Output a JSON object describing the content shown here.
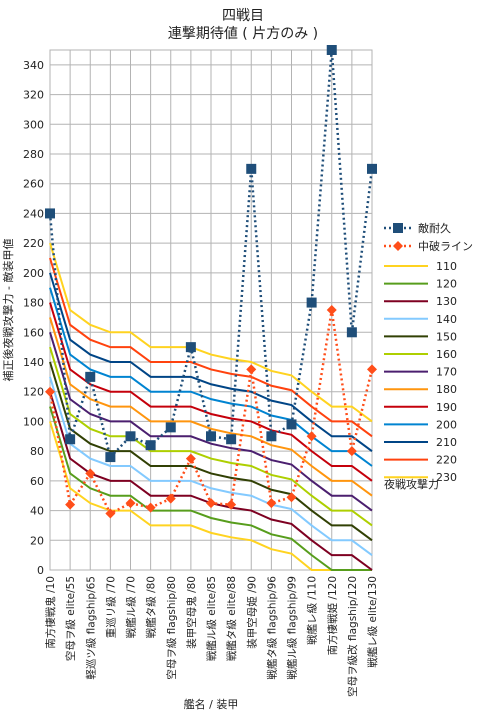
{
  "chart_data": {
    "type": "line",
    "title": "四戦目",
    "subtitle": "連撃期待値 ( 片方のみ )",
    "xlabel": "艦名 / 装甲",
    "ylabel": "補正後夜戦攻撃力 - 敵装甲値",
    "ylim": [
      0,
      350
    ],
    "yticks": [
      0,
      20,
      40,
      60,
      80,
      100,
      120,
      140,
      160,
      180,
      200,
      220,
      240,
      260,
      280,
      300,
      320,
      340
    ],
    "grid": true,
    "legend_position": "right",
    "legend_title": "夜戦攻撃力",
    "categories": [
      "南方棲戦鬼 /10",
      "空母ヲ級 elite/55",
      "軽巡ツ級 flagship/65",
      "重巡リ級 /70",
      "戦艦ル級 /70",
      "戦艦タ級 /80",
      "空母ヲ級 flagship/80",
      "装甲空母鬼 /80",
      "戦艦ル級 elite/85",
      "戦艦タ級 elite/88",
      "装甲空母姫 /90",
      "戦艦タ級 flagship/96",
      "戦艦ル級 flagship/99",
      "戦艦レ級 /110",
      "南方棲戦姫 /120",
      "空母ヲ級改 flagship/120",
      "戦艦レ級 elite/130"
    ],
    "armor": [
      10,
      55,
      65,
      70,
      70,
      80,
      80,
      80,
      85,
      88,
      90,
      96,
      99,
      110,
      120,
      120,
      130
    ],
    "markers": [
      {
        "name": "敵耐久",
        "color": "#1f4e79",
        "style": "square",
        "values": [
          240,
          88,
          130,
          76,
          90,
          84,
          96,
          150,
          90,
          88,
          270,
          90,
          98,
          180,
          350,
          160,
          270
        ]
      },
      {
        "name": "中破ライン",
        "color": "#ff4e1a",
        "style": "diamond",
        "values": [
          120,
          44,
          65,
          38,
          45,
          42,
          48,
          75,
          45,
          44,
          135,
          45,
          49,
          90,
          175,
          80,
          135
        ]
      }
    ],
    "series": [
      {
        "name": "110",
        "color": "#ffd320"
      },
      {
        "name": "120",
        "color": "#579d1c"
      },
      {
        "name": "130",
        "color": "#7e0021"
      },
      {
        "name": "140",
        "color": "#83caff"
      },
      {
        "name": "150",
        "color": "#314004"
      },
      {
        "name": "160",
        "color": "#aecf00"
      },
      {
        "name": "170",
        "color": "#4b1f6f"
      },
      {
        "name": "180",
        "color": "#ff950e"
      },
      {
        "name": "190",
        "color": "#c5000b"
      },
      {
        "name": "200",
        "color": "#0084d1"
      },
      {
        "name": "210",
        "color": "#004586"
      },
      {
        "name": "220",
        "color": "#ff420e"
      },
      {
        "name": "230",
        "color": "#ffd320"
      }
    ]
  }
}
